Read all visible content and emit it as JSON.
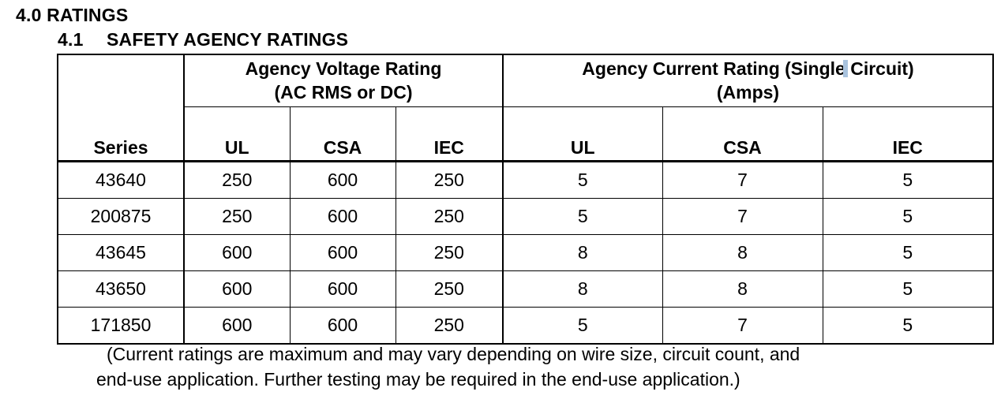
{
  "section": {
    "number": "4.0",
    "title": "RATINGS"
  },
  "subsection": {
    "number": "4.1",
    "title": "SAFETY AGENCY RATINGS"
  },
  "table": {
    "voltage_group": {
      "line1": "Agency Voltage Rating",
      "line2": "(AC RMS or DC)"
    },
    "current_group": {
      "line1a": "Agency Current Rating (Single",
      "line1b": "Circuit)",
      "line2": "(Amps)"
    },
    "series_header": "Series",
    "sub_headers": [
      "UL",
      "CSA",
      "IEC",
      "UL",
      "CSA",
      "IEC"
    ],
    "rows": [
      [
        "43640",
        "250",
        "600",
        "250",
        "5",
        "7",
        "5"
      ],
      [
        "200875",
        "250",
        "600",
        "250",
        "5",
        "7",
        "5"
      ],
      [
        "43645",
        "600",
        "600",
        "250",
        "8",
        "8",
        "5"
      ],
      [
        "43650",
        "600",
        "600",
        "250",
        "8",
        "8",
        "5"
      ],
      [
        "171850",
        "600",
        "600",
        "250",
        "5",
        "7",
        "5"
      ]
    ]
  },
  "note": {
    "line1": "(Current ratings are maximum and may vary depending on wire size, circuit count, and",
    "line2": "end-use application.  Further testing may be required in the end-use application.)"
  }
}
